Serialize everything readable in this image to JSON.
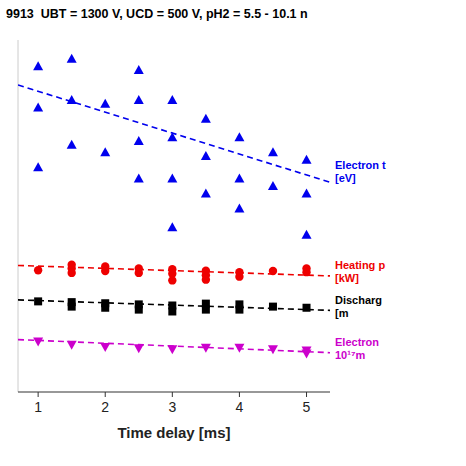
{
  "chart_data": {
    "type": "scatter",
    "title": "9913  UBT = 1300 V, UCD = 500 V, pH2 = 5.5 - 10.1 n",
    "x_label": "Time delay [ms]",
    "xlim": [
      0.7,
      5.35
    ],
    "ylim": [
      0.08,
      1.02
    ],
    "xticks": [
      1,
      2,
      3,
      4,
      5
    ],
    "tick_labels": "x",
    "grid": false,
    "series": [
      {
        "type": "scatter",
        "color": "#0000EE",
        "marker": "triangle-up",
        "x": [
          1.0,
          1.0,
          1.0,
          1.5,
          1.5,
          1.5,
          2.0,
          2.0,
          2.5,
          2.5,
          2.5,
          2.5,
          3.0,
          3.0,
          3.0,
          3.0,
          3.5,
          3.5,
          3.5,
          4.0,
          4.0,
          4.0,
          4.5,
          4.5,
          5.0,
          5.0,
          5.0
        ],
        "values": [
          0.95,
          0.84,
          0.68,
          0.97,
          0.86,
          0.74,
          0.85,
          0.72,
          0.94,
          0.86,
          0.75,
          0.65,
          0.86,
          0.76,
          0.65,
          0.52,
          0.81,
          0.71,
          0.61,
          0.76,
          0.65,
          0.57,
          0.72,
          0.63,
          0.7,
          0.61,
          0.5
        ]
      },
      {
        "type": "line",
        "color": "#0000EE",
        "line_style": "dashed",
        "x": [
          0.7,
          5.35
        ],
        "values": [
          0.9,
          0.64
        ]
      },
      {
        "type": "scatter",
        "color": "#EE0000",
        "marker": "circle",
        "x": [
          1.0,
          1.5,
          1.5,
          1.5,
          2.0,
          2.0,
          2.5,
          2.5,
          3.0,
          3.0,
          3.0,
          3.5,
          3.5,
          3.5,
          4.0,
          4.0,
          4.5,
          5.0,
          5.0
        ],
        "values": [
          0.405,
          0.42,
          0.41,
          0.398,
          0.415,
          0.403,
          0.41,
          0.398,
          0.408,
          0.396,
          0.378,
          0.404,
          0.392,
          0.38,
          0.4,
          0.388,
          0.403,
          0.4,
          0.41
        ]
      },
      {
        "type": "line",
        "color": "#EE0000",
        "line_style": "dashed",
        "x": [
          0.7,
          5.35
        ],
        "values": [
          0.418,
          0.39
        ]
      },
      {
        "type": "scatter",
        "color": "#000000",
        "marker": "square",
        "x": [
          1.0,
          1.5,
          1.5,
          2.0,
          2.0,
          2.5,
          2.5,
          3.0,
          3.0,
          3.5,
          3.5,
          4.0,
          4.0,
          4.5,
          5.0
        ],
        "values": [
          0.322,
          0.32,
          0.308,
          0.317,
          0.305,
          0.314,
          0.3,
          0.311,
          0.295,
          0.316,
          0.3,
          0.314,
          0.3,
          0.308,
          0.305
        ]
      },
      {
        "type": "line",
        "color": "#000000",
        "line_style": "dashed",
        "x": [
          0.7,
          5.35
        ],
        "values": [
          0.326,
          0.298
        ]
      },
      {
        "type": "scatter",
        "color": "#CC00CC",
        "marker": "triangle-down",
        "x": [
          1.0,
          1.5,
          2.0,
          2.5,
          3.0,
          3.5,
          4.0,
          4.5,
          5.0,
          5.0
        ],
        "values": [
          0.215,
          0.206,
          0.2,
          0.197,
          0.194,
          0.198,
          0.198,
          0.194,
          0.191,
          0.183
        ]
      },
      {
        "type": "line",
        "color": "#CC00CC",
        "line_style": "dashed",
        "x": [
          0.7,
          5.35
        ],
        "values": [
          0.22,
          0.185
        ]
      }
    ],
    "annotations": [
      {
        "text": "Electron t\n[eV]",
        "x": 5.35,
        "y": 0.67,
        "color": "#0000EE"
      },
      {
        "text": "Heating p\n[kW]",
        "x": 5.35,
        "y": 0.402,
        "color": "#EE0000"
      },
      {
        "text": "Discharg\n[m",
        "x": 5.35,
        "y": 0.308,
        "color": "#000000"
      },
      {
        "text": "Electron\n10¹⁷m",
        "x": 5.35,
        "y": 0.196,
        "color": "#CC00CC"
      }
    ]
  }
}
